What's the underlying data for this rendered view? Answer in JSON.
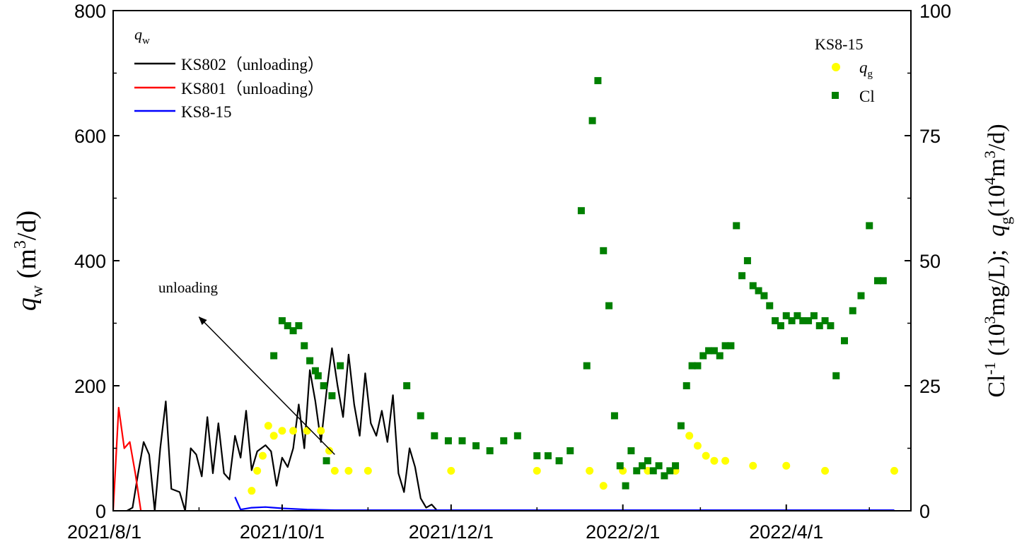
{
  "chart_data": {
    "type": "line",
    "x_axis": {
      "tick_labels": [
        "2021/8/1",
        "2021/10/1",
        "2021/12/1",
        "2022/2/1",
        "2022/4/1"
      ],
      "range": [
        "2021-08-01",
        "2022-05-16"
      ]
    },
    "y_left": {
      "label_var": "q",
      "label_sub": "w",
      "label_unit_pre": " (m",
      "label_unit_sup": "3",
      "label_unit_post": "/d)",
      "range": [
        0,
        800
      ],
      "ticks": [
        0,
        200,
        400,
        600,
        800
      ],
      "tick_labels": [
        "0",
        "200",
        "400",
        "600",
        "800"
      ]
    },
    "y_right": {
      "label_a_pre": "Cl",
      "label_a_sup": "-1",
      "label_a_mid": " (10",
      "label_a_sup2": "3",
      "label_a_post": "mg/L);",
      "label_b_var": "q",
      "label_b_sub": "g",
      "label_b_mid": "(10",
      "label_b_sup": "4",
      "label_b_mid2": "m",
      "label_b_sup2": "3",
      "label_b_post": "/d)",
      "range": [
        0,
        100
      ],
      "ticks": [
        0,
        25,
        50,
        75,
        100
      ],
      "tick_labels": [
        "0",
        "25",
        "50",
        "75",
        "100"
      ]
    },
    "legend_left": {
      "title_var": "q",
      "title_sub": "w",
      "position": "top-left",
      "entries": [
        "KS802（unloading）",
        "KS801（unloading）",
        "KS8-15"
      ]
    },
    "legend_right": {
      "title": "KS8-15",
      "position": "top-right",
      "entries": [
        {
          "var": "q",
          "sub": "g"
        },
        {
          "text": "Cl"
        }
      ]
    },
    "annotation": {
      "text": "unloading",
      "arrow_from": [
        "2021-10-20",
        90
      ],
      "arrow_to": [
        "2021-09-01",
        310
      ]
    },
    "series": [
      {
        "name": "KS802（unloading）",
        "axis": "left",
        "color": "#000000",
        "points": [
          [
            "2021-08-06",
            0
          ],
          [
            "2021-08-08",
            5
          ],
          [
            "2021-08-10",
            60
          ],
          [
            "2021-08-12",
            110
          ],
          [
            "2021-08-14",
            90
          ],
          [
            "2021-08-16",
            0
          ],
          [
            "2021-08-18",
            100
          ],
          [
            "2021-08-20",
            175
          ],
          [
            "2021-08-22",
            35
          ],
          [
            "2021-08-25",
            30
          ],
          [
            "2021-08-27",
            0
          ],
          [
            "2021-08-29",
            100
          ],
          [
            "2021-08-31",
            90
          ],
          [
            "2021-09-02",
            55
          ],
          [
            "2021-09-04",
            150
          ],
          [
            "2021-09-06",
            60
          ],
          [
            "2021-09-08",
            140
          ],
          [
            "2021-09-10",
            60
          ],
          [
            "2021-09-12",
            50
          ],
          [
            "2021-09-14",
            120
          ],
          [
            "2021-09-16",
            85
          ],
          [
            "2021-09-18",
            160
          ],
          [
            "2021-09-20",
            65
          ],
          [
            "2021-09-22",
            95
          ],
          [
            "2021-09-25",
            105
          ],
          [
            "2021-09-27",
            95
          ],
          [
            "2021-09-29",
            40
          ],
          [
            "2021-10-01",
            85
          ],
          [
            "2021-10-03",
            70
          ],
          [
            "2021-10-05",
            100
          ],
          [
            "2021-10-07",
            170
          ],
          [
            "2021-10-09",
            100
          ],
          [
            "2021-10-11",
            225
          ],
          [
            "2021-10-13",
            175
          ],
          [
            "2021-10-15",
            110
          ],
          [
            "2021-10-17",
            190
          ],
          [
            "2021-10-19",
            260
          ],
          [
            "2021-10-21",
            200
          ],
          [
            "2021-10-23",
            150
          ],
          [
            "2021-10-25",
            250
          ],
          [
            "2021-10-27",
            170
          ],
          [
            "2021-10-29",
            120
          ],
          [
            "2021-10-31",
            220
          ],
          [
            "2021-11-02",
            140
          ],
          [
            "2021-11-04",
            120
          ],
          [
            "2021-11-06",
            160
          ],
          [
            "2021-11-08",
            110
          ],
          [
            "2021-11-10",
            185
          ],
          [
            "2021-11-12",
            60
          ],
          [
            "2021-11-14",
            30
          ],
          [
            "2021-11-16",
            100
          ],
          [
            "2021-11-18",
            70
          ],
          [
            "2021-11-20",
            20
          ],
          [
            "2021-11-22",
            5
          ],
          [
            "2021-11-24",
            10
          ],
          [
            "2021-11-26",
            0
          ]
        ]
      },
      {
        "name": "KS801（unloading）",
        "axis": "left",
        "color": "#ff0000",
        "points": [
          [
            "2021-08-01",
            0
          ],
          [
            "2021-08-03",
            165
          ],
          [
            "2021-08-05",
            100
          ],
          [
            "2021-08-07",
            110
          ],
          [
            "2021-08-09",
            60
          ],
          [
            "2021-08-11",
            0
          ]
        ]
      },
      {
        "name": "KS8-15",
        "axis": "left",
        "color": "#0000ff",
        "points": [
          [
            "2021-09-14",
            22
          ],
          [
            "2021-09-16",
            2
          ],
          [
            "2021-09-20",
            5
          ],
          [
            "2021-09-25",
            6
          ],
          [
            "2021-10-01",
            4
          ],
          [
            "2021-10-10",
            2
          ],
          [
            "2021-10-20",
            1
          ],
          [
            "2021-11-01",
            1
          ],
          [
            "2022-05-10",
            1
          ]
        ]
      },
      {
        "name": "q_g",
        "axis": "right",
        "color": "#ffff00",
        "marker": "circle",
        "points": [
          [
            "2021-09-20",
            4
          ],
          [
            "2021-09-22",
            8
          ],
          [
            "2021-09-24",
            11
          ],
          [
            "2021-09-26",
            17
          ],
          [
            "2021-09-28",
            15
          ],
          [
            "2021-10-01",
            16
          ],
          [
            "2021-10-05",
            16
          ],
          [
            "2021-10-10",
            16
          ],
          [
            "2021-10-15",
            16
          ],
          [
            "2021-10-18",
            12
          ],
          [
            "2021-10-20",
            8
          ],
          [
            "2021-10-25",
            8
          ],
          [
            "2021-11-01",
            8
          ],
          [
            "2021-12-01",
            8
          ],
          [
            "2022-01-01",
            8
          ],
          [
            "2022-01-20",
            8
          ],
          [
            "2022-01-25",
            5
          ],
          [
            "2022-02-01",
            8
          ],
          [
            "2022-02-10",
            8
          ],
          [
            "2022-02-20",
            8
          ],
          [
            "2022-02-25",
            15
          ],
          [
            "2022-02-28",
            13
          ],
          [
            "2022-03-03",
            11
          ],
          [
            "2022-03-06",
            10
          ],
          [
            "2022-03-10",
            10
          ],
          [
            "2022-03-20",
            9
          ],
          [
            "2022-04-01",
            9
          ],
          [
            "2022-04-15",
            8
          ],
          [
            "2022-05-10",
            8
          ]
        ]
      },
      {
        "name": "Cl",
        "axis": "right",
        "color": "#008000",
        "marker": "square",
        "points": [
          [
            "2021-10-01",
            38
          ],
          [
            "2021-10-03",
            37
          ],
          [
            "2021-10-05",
            36
          ],
          [
            "2021-10-07",
            37
          ],
          [
            "2021-10-09",
            33
          ],
          [
            "2021-10-11",
            30
          ],
          [
            "2021-10-13",
            28
          ],
          [
            "2021-10-16",
            25
          ],
          [
            "2021-10-19",
            23
          ],
          [
            "2021-10-22",
            29
          ],
          [
            "2021-09-28",
            31
          ],
          [
            "2021-10-14",
            27
          ],
          [
            "2021-10-17",
            10
          ],
          [
            "2021-11-15",
            25
          ],
          [
            "2021-11-20",
            19
          ],
          [
            "2021-11-25",
            15
          ],
          [
            "2021-11-30",
            14
          ],
          [
            "2021-12-05",
            14
          ],
          [
            "2021-12-10",
            13
          ],
          [
            "2021-12-15",
            12
          ],
          [
            "2021-12-20",
            14
          ],
          [
            "2021-12-25",
            15
          ],
          [
            "2022-01-01",
            11
          ],
          [
            "2022-01-05",
            11
          ],
          [
            "2022-01-09",
            10
          ],
          [
            "2022-01-13",
            12
          ],
          [
            "2022-01-17",
            60
          ],
          [
            "2022-01-19",
            29
          ],
          [
            "2022-01-21",
            78
          ],
          [
            "2022-01-23",
            86
          ],
          [
            "2022-01-25",
            52
          ],
          [
            "2022-01-27",
            41
          ],
          [
            "2022-01-29",
            19
          ],
          [
            "2022-01-31",
            9
          ],
          [
            "2022-02-02",
            5
          ],
          [
            "2022-02-04",
            12
          ],
          [
            "2022-02-06",
            8
          ],
          [
            "2022-02-08",
            9
          ],
          [
            "2022-02-10",
            10
          ],
          [
            "2022-02-12",
            8
          ],
          [
            "2022-02-14",
            9
          ],
          [
            "2022-02-16",
            7
          ],
          [
            "2022-02-18",
            8
          ],
          [
            "2022-02-20",
            9
          ],
          [
            "2022-02-22",
            17
          ],
          [
            "2022-02-24",
            25
          ],
          [
            "2022-02-26",
            29
          ],
          [
            "2022-02-28",
            29
          ],
          [
            "2022-03-02",
            31
          ],
          [
            "2022-03-04",
            32
          ],
          [
            "2022-03-06",
            32
          ],
          [
            "2022-03-08",
            31
          ],
          [
            "2022-03-10",
            33
          ],
          [
            "2022-03-12",
            33
          ],
          [
            "2022-03-14",
            57
          ],
          [
            "2022-03-16",
            47
          ],
          [
            "2022-03-18",
            50
          ],
          [
            "2022-03-20",
            45
          ],
          [
            "2022-03-22",
            44
          ],
          [
            "2022-03-24",
            43
          ],
          [
            "2022-03-26",
            41
          ],
          [
            "2022-03-28",
            38
          ],
          [
            "2022-03-30",
            37
          ],
          [
            "2022-04-01",
            39
          ],
          [
            "2022-04-03",
            38
          ],
          [
            "2022-04-05",
            39
          ],
          [
            "2022-04-07",
            38
          ],
          [
            "2022-04-09",
            38
          ],
          [
            "2022-04-11",
            39
          ],
          [
            "2022-04-13",
            37
          ],
          [
            "2022-04-15",
            38
          ],
          [
            "2022-04-17",
            37
          ],
          [
            "2022-04-19",
            27
          ],
          [
            "2022-04-22",
            34
          ],
          [
            "2022-04-25",
            40
          ],
          [
            "2022-04-28",
            43
          ],
          [
            "2022-05-01",
            57
          ],
          [
            "2022-05-04",
            46
          ],
          [
            "2022-05-06",
            46
          ]
        ]
      }
    ]
  }
}
